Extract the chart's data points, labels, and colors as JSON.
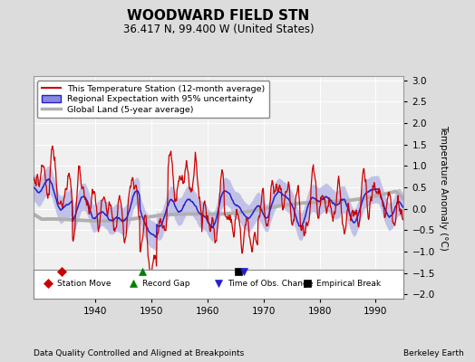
{
  "title": "WOODWARD FIELD STN",
  "subtitle": "36.417 N, 99.400 W (United States)",
  "ylabel": "Temperature Anomaly (°C)",
  "footer_left": "Data Quality Controlled and Aligned at Breakpoints",
  "footer_right": "Berkeley Earth",
  "ylim": [
    -2.1,
    3.1
  ],
  "xlim": [
    1929,
    1995
  ],
  "yticks": [
    -2,
    -1.5,
    -1,
    -0.5,
    0,
    0.5,
    1,
    1.5,
    2,
    2.5,
    3
  ],
  "xticks": [
    1940,
    1950,
    1960,
    1970,
    1980,
    1990
  ],
  "bg_color": "#dcdcdc",
  "plot_bg_color": "#f0f0f0",
  "station_color": "#cc0000",
  "regional_color": "#2222cc",
  "regional_band_color": "#8888dd",
  "global_color": "#b0b0b0",
  "legend_entries": [
    {
      "label": "This Temperature Station (12-month average)",
      "color": "#cc0000"
    },
    {
      "label": "Regional Expectation with 95% uncertainty",
      "color": "#2222cc"
    },
    {
      "label": "Global Land (5-year average)",
      "color": "#b0b0b0"
    }
  ],
  "marker_events": [
    {
      "x": 1934.0,
      "color": "#cc0000",
      "marker": "D",
      "label": "Station Move"
    },
    {
      "x": 1948.5,
      "color": "green",
      "marker": "^",
      "label": "Record Gap"
    },
    {
      "x": 1965.5,
      "color": "#000000",
      "marker": "s",
      "label": "Empirical Break"
    },
    {
      "x": 1966.5,
      "color": "#2222cc",
      "marker": "v",
      "label": "Time of Obs. Change"
    }
  ]
}
